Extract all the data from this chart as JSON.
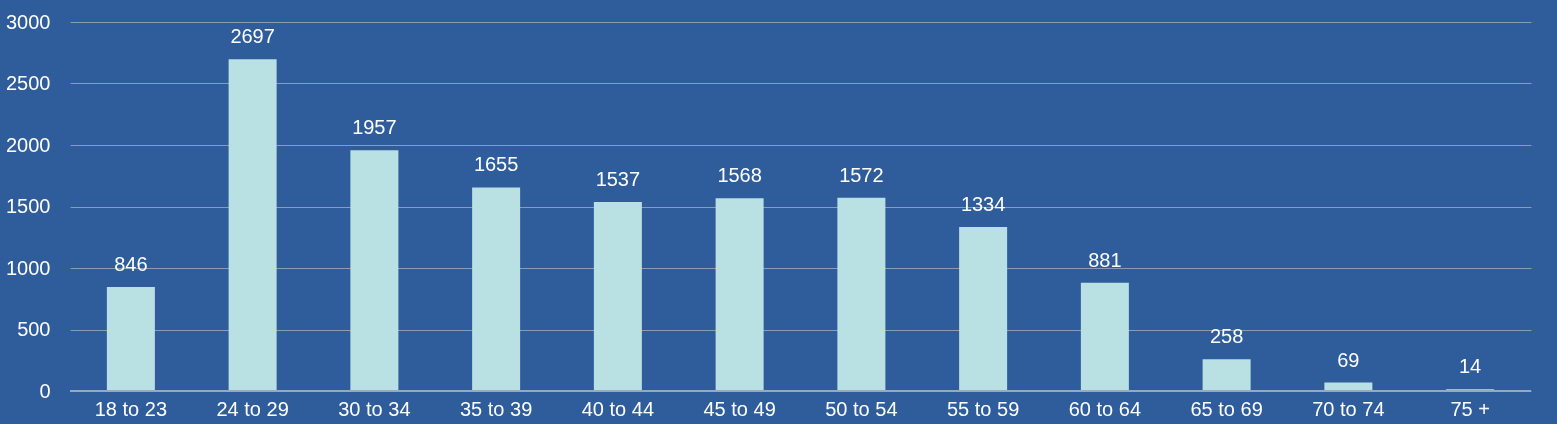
{
  "chart_data": {
    "type": "bar",
    "categories": [
      "18 to 23",
      "24 to 29",
      "30 to 34",
      "35 to 39",
      "40 to 44",
      "45 to 49",
      "50 to 54",
      "55 to 59",
      "60 to 64",
      "65 to 69",
      "70 to 74",
      "75 +"
    ],
    "values": [
      846,
      2697,
      1957,
      1655,
      1537,
      1568,
      1572,
      1334,
      881,
      258,
      69,
      14
    ],
    "color": "#b9e0e3",
    "ylim": [
      0,
      3000
    ],
    "yticks": [
      0,
      500,
      1000,
      1500,
      2000,
      2500,
      3000
    ],
    "grid": "y",
    "data_labels": true
  }
}
